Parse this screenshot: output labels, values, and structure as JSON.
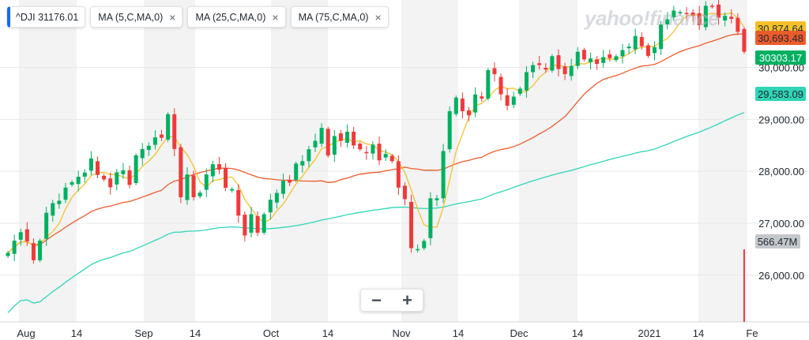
{
  "watermark": "yahoo!finance",
  "legend": {
    "ticker": "^DJI 31176.01",
    "ma5": "MA (5,C,MA,0)",
    "ma25": "MA (25,C,MA,0)",
    "ma75": "MA (75,C,MA,0)",
    "close_glyph": "×"
  },
  "zoom": {
    "out": "−",
    "in": "+"
  },
  "colors": {
    "up": "#00b061",
    "down": "#f03a3a",
    "ma5": "#f6c02a",
    "ma25": "#ec5b2c",
    "ma75": "#2fd5b5",
    "volume": "#f03a3a",
    "band": "#f3f3f3",
    "grid": "#e6e8ea"
  },
  "chart_data": {
    "type": "candlestick",
    "x_tick_labels": [
      "Aug",
      "14",
      "Sep",
      "14",
      "Oct",
      "14",
      "Nov",
      "14",
      "Dec",
      "14",
      "2021",
      "14",
      "Fe"
    ],
    "y_tick_labels": [
      "30,000.00",
      "29,000.00",
      "28,000.00",
      "27,000.00",
      "26,000.00"
    ],
    "y_ticks": [
      30000,
      29000,
      28000,
      27000,
      26000
    ],
    "ylim": [
      25100,
      31300
    ],
    "price_badges": [
      {
        "label": "30,874.64",
        "value": 30874.64,
        "series": "ma5"
      },
      {
        "label": "30,693.48",
        "value": 30693.48,
        "series": "ma25"
      },
      {
        "label": "30303.17",
        "value": 30303.17,
        "series": "last_close"
      },
      {
        "label": "29,583.09",
        "value": 29583.09,
        "series": "ma75"
      }
    ],
    "volume_badge": "566.47M",
    "closes": [
      26428,
      26664,
      26828,
      26652,
      26287,
      26664,
      27201,
      27386,
      27433,
      27687,
      27791,
      27896,
      27976,
      28248,
      27931,
      27844,
      27692,
      27980,
      28020,
      27739,
      28308,
      28430,
      28492,
      28654,
      28646,
      29100,
      28430,
      27500,
      27940,
      27501,
      27590,
      27940,
      28137,
      28032,
      27683,
      27657,
      27147,
      26763,
      27174,
      26816,
      27173,
      27452,
      27584,
      27817,
      27782,
      28149,
      28196,
      28425,
      28587,
      28837,
      28303,
      28679,
      28586,
      28763,
      28497,
      28425,
      28361,
      28514,
      28211,
      28335,
      28195,
      27686,
      27464,
      26520,
      26502,
      26659,
      27480,
      27481,
      28390,
      29158,
      29420,
      29157,
      29080,
      29479,
      29402,
      29950,
      29872,
      29483,
      29263,
      29439,
      29592,
      29910,
      30046,
      30047,
      29960,
      30218,
      29969,
      29872,
      30030,
      30303,
      30155,
      30174,
      30069,
      30199,
      30179,
      30216,
      30335,
      30404,
      30606,
      30409,
      30223,
      30391,
      30829,
      30928,
      31097,
      31068,
      31041,
      30991,
      30814,
      31188,
      31176,
      30960,
      30997,
      30937,
      30687,
      30303
    ],
    "volume_last": 566.47
  }
}
